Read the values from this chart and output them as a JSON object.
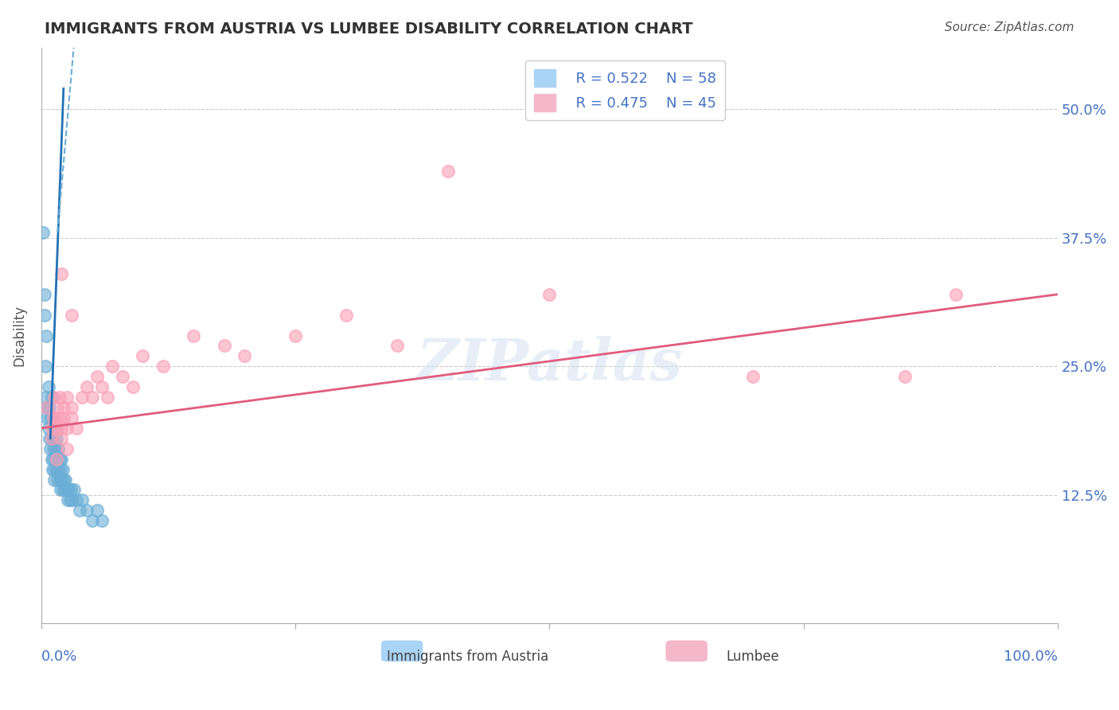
{
  "title": "IMMIGRANTS FROM AUSTRIA VS LUMBEE DISABILITY CORRELATION CHART",
  "source": "Source: ZipAtlas.com",
  "ylabel": "Disability",
  "ytick_labels": [
    "12.5%",
    "25.0%",
    "37.5%",
    "50.0%"
  ],
  "ytick_values": [
    0.125,
    0.25,
    0.375,
    0.5
  ],
  "legend_blue_R": "R = 0.522",
  "legend_blue_N": "N = 58",
  "legend_pink_R": "R = 0.475",
  "legend_pink_N": "N = 45",
  "legend_blue_label": "Immigrants from Austria",
  "legend_pink_label": "Lumbee",
  "watermark": "ZIPatlas",
  "blue_color": "#6baed6",
  "pink_color": "#fa9fb5",
  "blue_line_color": "#2171b5",
  "pink_line_color": "#e05c7e",
  "blue_scatter": [
    [
      0.002,
      0.38
    ],
    [
      0.003,
      0.32
    ],
    [
      0.003,
      0.3
    ],
    [
      0.004,
      0.25
    ],
    [
      0.005,
      0.28
    ],
    [
      0.005,
      0.22
    ],
    [
      0.006,
      0.21
    ],
    [
      0.006,
      0.2
    ],
    [
      0.007,
      0.23
    ],
    [
      0.007,
      0.19
    ],
    [
      0.008,
      0.21
    ],
    [
      0.008,
      0.18
    ],
    [
      0.009,
      0.2
    ],
    [
      0.009,
      0.17
    ],
    [
      0.01,
      0.22
    ],
    [
      0.01,
      0.16
    ],
    [
      0.01,
      0.18
    ],
    [
      0.011,
      0.2
    ],
    [
      0.011,
      0.15
    ],
    [
      0.012,
      0.18
    ],
    [
      0.012,
      0.17
    ],
    [
      0.012,
      0.16
    ],
    [
      0.013,
      0.19
    ],
    [
      0.013,
      0.15
    ],
    [
      0.013,
      0.14
    ],
    [
      0.014,
      0.17
    ],
    [
      0.014,
      0.16
    ],
    [
      0.015,
      0.18
    ],
    [
      0.015,
      0.15
    ],
    [
      0.016,
      0.16
    ],
    [
      0.016,
      0.14
    ],
    [
      0.017,
      0.17
    ],
    [
      0.017,
      0.15
    ],
    [
      0.018,
      0.16
    ],
    [
      0.018,
      0.14
    ],
    [
      0.019,
      0.15
    ],
    [
      0.019,
      0.13
    ],
    [
      0.02,
      0.16
    ],
    [
      0.02,
      0.14
    ],
    [
      0.021,
      0.15
    ],
    [
      0.021,
      0.13
    ],
    [
      0.022,
      0.14
    ],
    [
      0.023,
      0.13
    ],
    [
      0.024,
      0.14
    ],
    [
      0.025,
      0.13
    ],
    [
      0.026,
      0.12
    ],
    [
      0.027,
      0.13
    ],
    [
      0.028,
      0.12
    ],
    [
      0.029,
      0.13
    ],
    [
      0.03,
      0.12
    ],
    [
      0.032,
      0.13
    ],
    [
      0.035,
      0.12
    ],
    [
      0.038,
      0.11
    ],
    [
      0.04,
      0.12
    ],
    [
      0.045,
      0.11
    ],
    [
      0.05,
      0.1
    ],
    [
      0.055,
      0.11
    ],
    [
      0.06,
      0.1
    ]
  ],
  "pink_scatter": [
    [
      0.005,
      0.21
    ],
    [
      0.01,
      0.19
    ],
    [
      0.01,
      0.18
    ],
    [
      0.012,
      0.2
    ],
    [
      0.013,
      0.22
    ],
    [
      0.015,
      0.2
    ],
    [
      0.015,
      0.19
    ],
    [
      0.016,
      0.21
    ],
    [
      0.018,
      0.22
    ],
    [
      0.018,
      0.2
    ],
    [
      0.02,
      0.19
    ],
    [
      0.02,
      0.18
    ],
    [
      0.022,
      0.21
    ],
    [
      0.022,
      0.2
    ],
    [
      0.025,
      0.22
    ],
    [
      0.025,
      0.19
    ],
    [
      0.03,
      0.21
    ],
    [
      0.03,
      0.2
    ],
    [
      0.035,
      0.19
    ],
    [
      0.04,
      0.22
    ],
    [
      0.045,
      0.23
    ],
    [
      0.05,
      0.22
    ],
    [
      0.055,
      0.24
    ],
    [
      0.06,
      0.23
    ],
    [
      0.065,
      0.22
    ],
    [
      0.07,
      0.25
    ],
    [
      0.08,
      0.24
    ],
    [
      0.09,
      0.23
    ],
    [
      0.1,
      0.26
    ],
    [
      0.12,
      0.25
    ],
    [
      0.15,
      0.28
    ],
    [
      0.18,
      0.27
    ],
    [
      0.2,
      0.26
    ],
    [
      0.25,
      0.28
    ],
    [
      0.3,
      0.3
    ],
    [
      0.35,
      0.27
    ],
    [
      0.02,
      0.34
    ],
    [
      0.03,
      0.3
    ],
    [
      0.025,
      0.17
    ],
    [
      0.015,
      0.16
    ],
    [
      0.4,
      0.44
    ],
    [
      0.5,
      0.32
    ],
    [
      0.7,
      0.24
    ],
    [
      0.85,
      0.24
    ],
    [
      0.9,
      0.32
    ]
  ],
  "xlim": [
    0.0,
    1.0
  ],
  "ylim": [
    0.0,
    0.56
  ]
}
